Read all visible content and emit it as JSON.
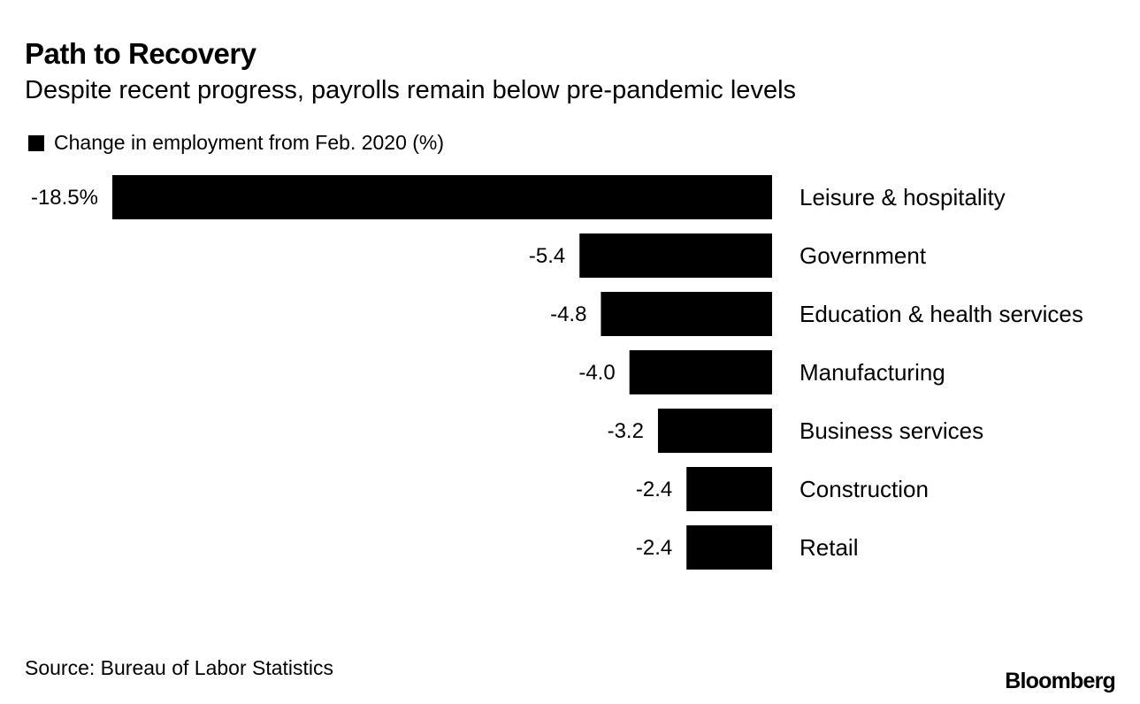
{
  "chart_data": {
    "type": "bar",
    "orientation": "horizontal",
    "title": "Path to Recovery",
    "subtitle": "Despite recent progress, payrolls remain below pre-pandemic levels",
    "legend": [
      {
        "name": "Change in employment from Feb. 2020 (%)",
        "color": "#000000"
      }
    ],
    "legend_placement": "top-left",
    "categories": [
      "Leisure & hospitality",
      "Government",
      "Education & health services",
      "Manufacturing",
      "Business services",
      "Construction",
      "Retail"
    ],
    "values": [
      -18.5,
      -5.4,
      -4.8,
      -4.0,
      -3.2,
      -2.4,
      -2.4
    ],
    "value_labels": [
      "-18.5%",
      "-5.4",
      "-4.8",
      "-4.0",
      "-3.2",
      "-2.4",
      "-2.4"
    ],
    "bar_color": "#000000",
    "grid": false,
    "source": "Source: Bureau of Labor Statistics"
  },
  "branding": {
    "logo": "Bloomberg"
  }
}
